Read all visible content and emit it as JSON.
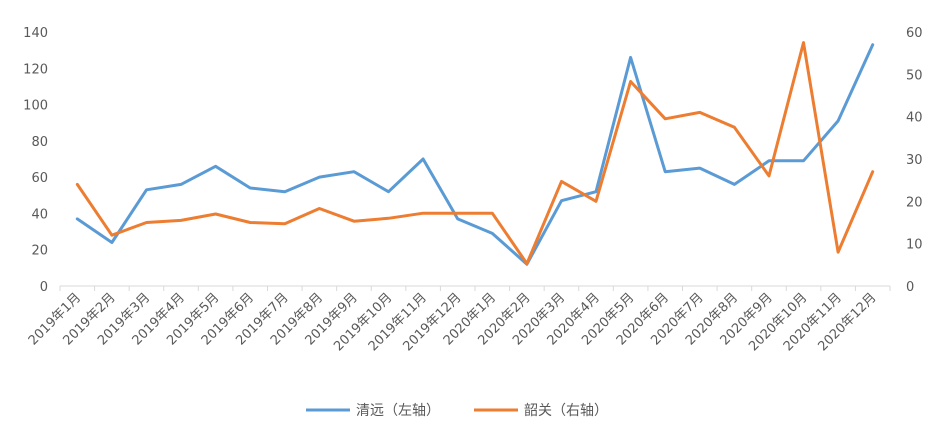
{
  "chart_data": {
    "type": "line",
    "categories": [
      "2019年1月",
      "2019年2月",
      "2019年3月",
      "2019年4月",
      "2019年5月",
      "2019年6月",
      "2019年7月",
      "2019年8月",
      "2019年9月",
      "2019年10月",
      "2019年11月",
      "2019年12月",
      "2020年1月",
      "2020年2月",
      "2020年3月",
      "2020年4月",
      "2020年5月",
      "2020年6月",
      "2020年7月",
      "2020年8月",
      "2020年9月",
      "2020年10月",
      "2020年11月",
      "2020年12月"
    ],
    "series": [
      {
        "name": "清远（左轴）",
        "axis": "left",
        "color": "#5B9BD5",
        "values": [
          37,
          24,
          53,
          56,
          66,
          54,
          52,
          60,
          63,
          52,
          70,
          37,
          29,
          12,
          47,
          52,
          126,
          63,
          65,
          56,
          69,
          69,
          91,
          133
        ]
      },
      {
        "name": "韶关（右轴）",
        "axis": "right",
        "color": "#ED7D31",
        "values": [
          24,
          12,
          15,
          15.5,
          17,
          15,
          14.7,
          18.3,
          15.3,
          16,
          17.2,
          17.2,
          17.2,
          5.3,
          24.7,
          20,
          48.3,
          39.5,
          41,
          37.5,
          26,
          57.5,
          8,
          27
        ]
      }
    ],
    "y_left": {
      "min": 0,
      "max": 140,
      "step": 20
    },
    "y_right": {
      "min": 0,
      "max": 60,
      "step": 10
    },
    "grid": false,
    "legend_position": "bottom"
  }
}
